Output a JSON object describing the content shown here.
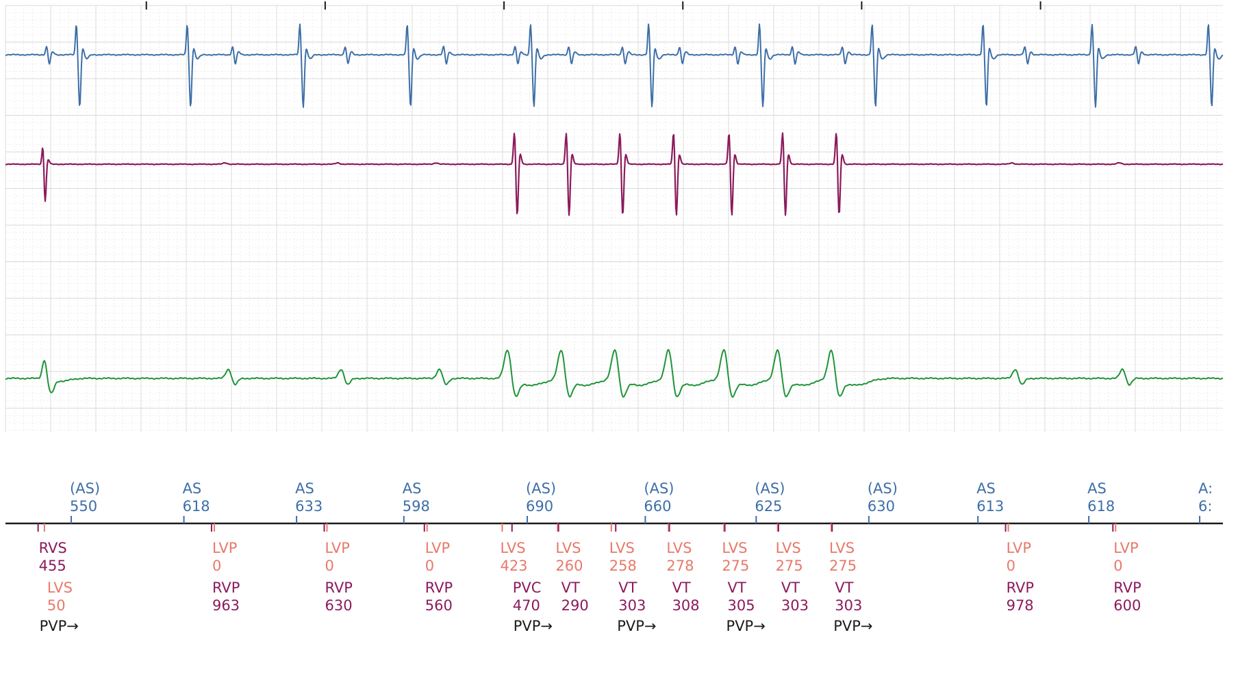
{
  "colors": {
    "atrial": "#3d6ea8",
    "rv": "#8b1a5c",
    "lv": "#e8796a",
    "surface": "#1e9438",
    "black": "#1a1a1a",
    "grid": "#d8d8d8"
  },
  "chart_data": {
    "type": "line",
    "x_range_seconds": [
      0,
      6.8
    ],
    "channels": [
      {
        "name": "",
        "color": "atrial"
      },
      {
        "name": "",
        "color": "rv"
      },
      {
        "name": "",
        "color": "surface"
      }
    ],
    "atrial_markers": [
      {
        "label": "(AS)",
        "value": "550",
        "t": 0.36
      },
      {
        "label": "AS",
        "value": "618",
        "t": 0.99
      },
      {
        "label": "AS",
        "value": "633",
        "t": 1.62
      },
      {
        "label": "AS",
        "value": "598",
        "t": 2.22
      },
      {
        "label": "(AS)",
        "value": "690",
        "t": 2.91
      },
      {
        "label": "(AS)",
        "value": "660",
        "t": 3.57
      },
      {
        "label": "(AS)",
        "value": "625",
        "t": 4.19
      },
      {
        "label": "(AS)",
        "value": "630",
        "t": 4.82
      },
      {
        "label": "AS",
        "value": "613",
        "t": 5.43
      },
      {
        "label": "AS",
        "value": "618",
        "t": 6.05
      },
      {
        "label": "A:",
        "value": "6:",
        "t": 6.67
      }
    ],
    "lv_markers": [
      {
        "label": "LVS",
        "value": "50",
        "t": 0.21,
        "row": 2
      },
      {
        "label": "LVP",
        "value": "0",
        "t": 1.16,
        "row": 1
      },
      {
        "label": "LVP",
        "value": "0",
        "t": 1.79,
        "row": 1
      },
      {
        "label": "LVP",
        "value": "0",
        "t": 2.35,
        "row": 1
      },
      {
        "label": "LVS",
        "value": "423",
        "t": 2.77,
        "row": 1
      },
      {
        "label": "LVS",
        "value": "260",
        "t": 3.08,
        "row": 1
      },
      {
        "label": "LVS",
        "value": "258",
        "t": 3.38,
        "row": 1
      },
      {
        "label": "LVS",
        "value": "278",
        "t": 3.7,
        "row": 1
      },
      {
        "label": "LVS",
        "value": "275",
        "t": 4.01,
        "row": 1
      },
      {
        "label": "LVS",
        "value": "275",
        "t": 4.31,
        "row": 1
      },
      {
        "label": "LVS",
        "value": "275",
        "t": 4.61,
        "row": 1
      },
      {
        "label": "LVP",
        "value": "0",
        "t": 5.6,
        "row": 1
      },
      {
        "label": "LVP",
        "value": "0",
        "t": 6.2,
        "row": 1
      }
    ],
    "rv_markers": [
      {
        "label": "RVS",
        "value": "455",
        "t": 0.19,
        "row": 1
      },
      {
        "label": "RVP",
        "value": "963",
        "t": 1.16,
        "row": 2
      },
      {
        "label": "RVP",
        "value": "630",
        "t": 1.79,
        "row": 2
      },
      {
        "label": "RVP",
        "value": "560",
        "t": 2.35,
        "row": 2
      },
      {
        "label": "PVC",
        "value": "470",
        "t": 2.84,
        "row": 2
      },
      {
        "label": "VT",
        "value": "290",
        "t": 3.1,
        "row": 2
      },
      {
        "label": "VT",
        "value": "303",
        "t": 3.42,
        "row": 2
      },
      {
        "label": "VT",
        "value": "308",
        "t": 3.72,
        "row": 2
      },
      {
        "label": "VT",
        "value": "305",
        "t": 4.03,
        "row": 2
      },
      {
        "label": "VT",
        "value": "303",
        "t": 4.33,
        "row": 2
      },
      {
        "label": "VT",
        "value": "303",
        "t": 4.63,
        "row": 2
      },
      {
        "label": "RVP",
        "value": "978",
        "t": 5.6,
        "row": 2
      },
      {
        "label": "RVP",
        "value": "600",
        "t": 6.2,
        "row": 2
      }
    ],
    "pvp_labels": [
      {
        "label": "PVP→",
        "t": 0.19
      },
      {
        "label": "PVP→",
        "t": 2.84
      },
      {
        "label": "PVP→",
        "t": 3.42
      },
      {
        "label": "PVP→",
        "t": 4.03
      },
      {
        "label": "PVP→",
        "t": 4.63
      }
    ],
    "top_ticks_t": [
      0.78,
      1.78,
      2.78,
      3.78,
      4.78,
      5.78
    ],
    "atrial_beats": [
      {
        "t": 0.23,
        "kind": "small"
      },
      {
        "t": 0.4,
        "kind": "big"
      },
      {
        "t": 1.02,
        "kind": "big"
      },
      {
        "t": 1.27,
        "kind": "small"
      },
      {
        "t": 1.65,
        "kind": "big"
      },
      {
        "t": 1.9,
        "kind": "small"
      },
      {
        "t": 2.25,
        "kind": "big"
      },
      {
        "t": 2.45,
        "kind": "small"
      },
      {
        "t": 2.85,
        "kind": "small"
      },
      {
        "t": 2.94,
        "kind": "big"
      },
      {
        "t": 3.15,
        "kind": "small"
      },
      {
        "t": 3.45,
        "kind": "small"
      },
      {
        "t": 3.6,
        "kind": "big"
      },
      {
        "t": 3.77,
        "kind": "small"
      },
      {
        "t": 4.08,
        "kind": "small"
      },
      {
        "t": 4.22,
        "kind": "big"
      },
      {
        "t": 4.4,
        "kind": "small"
      },
      {
        "t": 4.68,
        "kind": "small"
      },
      {
        "t": 4.85,
        "kind": "big"
      },
      {
        "t": 5.47,
        "kind": "big"
      },
      {
        "t": 5.7,
        "kind": "small"
      },
      {
        "t": 6.08,
        "kind": "big"
      },
      {
        "t": 6.32,
        "kind": "small"
      },
      {
        "t": 6.73,
        "kind": "big"
      }
    ],
    "rv_beats": [
      {
        "t": 0.21,
        "kind": "big"
      },
      {
        "t": 1.22,
        "kind": "tiny"
      },
      {
        "t": 1.85,
        "kind": "tiny"
      },
      {
        "t": 2.4,
        "kind": "tiny"
      },
      {
        "t": 2.85,
        "kind": "vt"
      },
      {
        "t": 3.14,
        "kind": "vt"
      },
      {
        "t": 3.44,
        "kind": "vt"
      },
      {
        "t": 3.74,
        "kind": "vt"
      },
      {
        "t": 4.05,
        "kind": "vt"
      },
      {
        "t": 4.35,
        "kind": "vt"
      },
      {
        "t": 4.65,
        "kind": "vt"
      },
      {
        "t": 5.62,
        "kind": "tiny"
      },
      {
        "t": 6.22,
        "kind": "tiny"
      }
    ],
    "surface_beats": [
      {
        "t": 0.21,
        "kind": "sharp"
      },
      {
        "t": 1.24,
        "kind": "small"
      },
      {
        "t": 1.87,
        "kind": "small"
      },
      {
        "t": 2.42,
        "kind": "small"
      },
      {
        "t": 2.82,
        "kind": "vt"
      },
      {
        "t": 3.12,
        "kind": "vt"
      },
      {
        "t": 3.42,
        "kind": "vt"
      },
      {
        "t": 3.72,
        "kind": "vt"
      },
      {
        "t": 4.03,
        "kind": "vt"
      },
      {
        "t": 4.33,
        "kind": "vt"
      },
      {
        "t": 4.63,
        "kind": "vt"
      },
      {
        "t": 5.64,
        "kind": "small"
      },
      {
        "t": 6.24,
        "kind": "small"
      }
    ]
  }
}
